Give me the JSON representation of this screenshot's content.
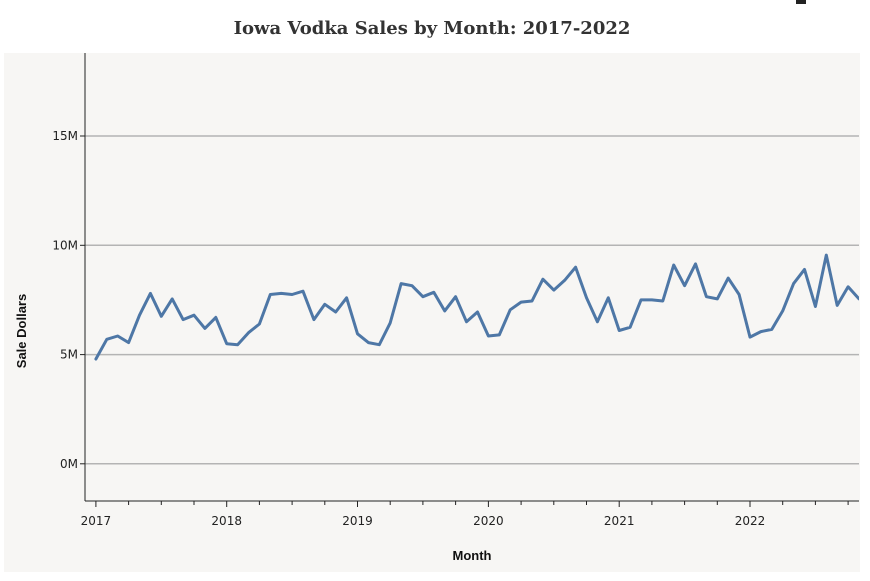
{
  "chart_data": {
    "type": "line",
    "title": "Iowa Vodka Sales by Month: 2017-2022",
    "xlabel": "Month",
    "ylabel": "Sale Dollars",
    "x_ticks": [
      "2017",
      "2018",
      "2019",
      "2020",
      "2021",
      "2022"
    ],
    "y_ticks": [
      "0M",
      "5M",
      "10M",
      "15M"
    ],
    "y_tick_values": [
      0,
      5,
      10,
      15
    ],
    "ylim": [
      -1.7,
      18.8
    ],
    "xlim": [
      "2016-12",
      "2022-11"
    ],
    "grid": "horizontal",
    "colors": {
      "line": "#4e77a6",
      "grid": "#b4b4b4",
      "axis": "#222222",
      "background": "#f7f6f4"
    },
    "series": [
      {
        "x": [
          "2017-01",
          "2017-02",
          "2017-03",
          "2017-04",
          "2017-05",
          "2017-06",
          "2017-07",
          "2017-08",
          "2017-09",
          "2017-10",
          "2017-11",
          "2017-12",
          "2018-01",
          "2018-02",
          "2018-03",
          "2018-04",
          "2018-05",
          "2018-06",
          "2018-07",
          "2018-08",
          "2018-09",
          "2018-10",
          "2018-11",
          "2018-12",
          "2019-01",
          "2019-02",
          "2019-03",
          "2019-04",
          "2019-05",
          "2019-06",
          "2019-07",
          "2019-08",
          "2019-09",
          "2019-10",
          "2019-11",
          "2019-12",
          "2020-01",
          "2020-02",
          "2020-03",
          "2020-04",
          "2020-05",
          "2020-06",
          "2020-07",
          "2020-08",
          "2020-09",
          "2020-10",
          "2020-11",
          "2020-12",
          "2021-01",
          "2021-02",
          "2021-03",
          "2021-04",
          "2021-05",
          "2021-06",
          "2021-07",
          "2021-08",
          "2021-09",
          "2021-10",
          "2021-11",
          "2021-12",
          "2022-01",
          "2022-02",
          "2022-03",
          "2022-04",
          "2022-05",
          "2022-06",
          "2022-07",
          "2022-08",
          "2022-09",
          "2022-10",
          "2022-11",
          "2022-12"
        ],
        "values": [
          4.8,
          5.7,
          5.85,
          5.55,
          6.8,
          7.8,
          6.75,
          7.55,
          6.6,
          6.8,
          6.2,
          6.7,
          5.5,
          5.45,
          6.0,
          6.4,
          7.75,
          7.8,
          7.75,
          7.9,
          6.6,
          7.3,
          6.95,
          7.6,
          5.95,
          5.55,
          5.45,
          6.45,
          8.25,
          8.15,
          7.65,
          7.85,
          7.0,
          7.65,
          6.5,
          6.95,
          5.85,
          5.9,
          7.05,
          7.4,
          7.45,
          8.45,
          7.95,
          8.4,
          9.0,
          7.6,
          6.5,
          7.6,
          6.1,
          6.25,
          7.5,
          7.5,
          7.45,
          9.1,
          8.15,
          9.15,
          7.65,
          7.55,
          8.5,
          7.75,
          5.8,
          6.05,
          6.15,
          7.0,
          8.25,
          8.9,
          7.2,
          9.55,
          7.25,
          8.1,
          7.55,
          7.5
        ]
      }
    ]
  }
}
